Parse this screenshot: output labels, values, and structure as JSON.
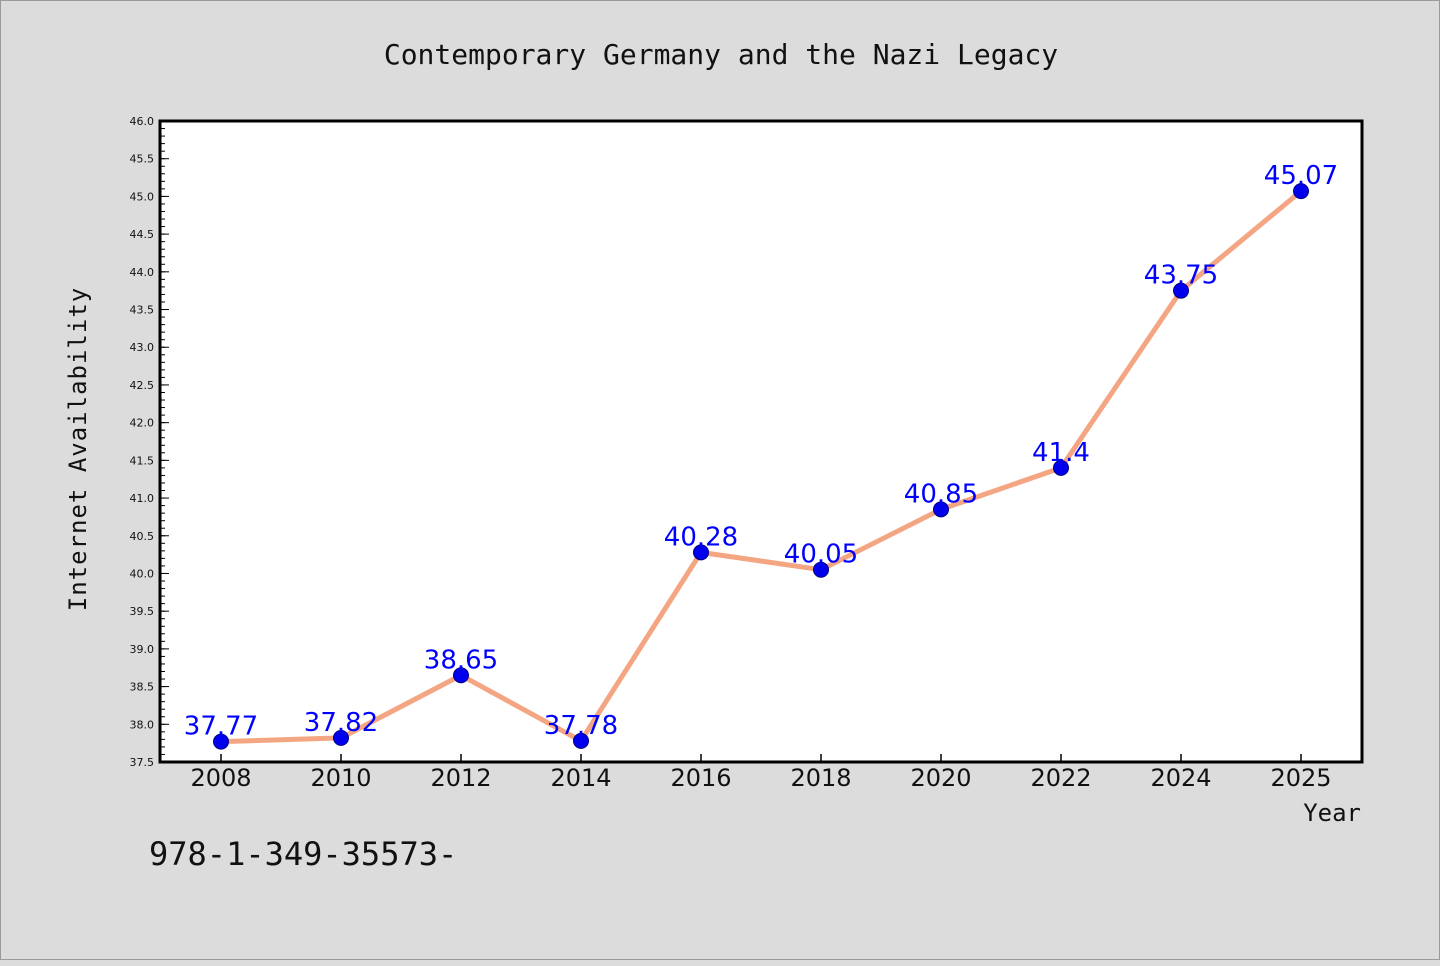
{
  "chart_data": {
    "type": "line",
    "title": "Contemporary Germany and the Nazi Legacy",
    "xlabel": "Year",
    "ylabel": "Internet Availability",
    "categories": [
      "2008",
      "2010",
      "2012",
      "2014",
      "2016",
      "2018",
      "2020",
      "2022",
      "2024",
      "2025"
    ],
    "values": [
      37.77,
      37.82,
      38.65,
      37.78,
      40.28,
      40.05,
      40.85,
      41.4,
      43.75,
      45.07
    ],
    "data_labels": [
      "37.77",
      "37.82",
      "38.65",
      "37.78",
      "40.28",
      "40.05",
      "40.85",
      "41.4",
      "43.75",
      "45.07"
    ],
    "ylim": [
      37.5,
      46.0
    ],
    "y_ticks": [
      "37.5",
      "38.0",
      "38.5",
      "39.0",
      "39.5",
      "40.0",
      "40.5",
      "41.0",
      "41.5",
      "42.0",
      "42.5",
      "43.0",
      "43.5",
      "44.0",
      "44.5",
      "45.0",
      "45.5",
      "46.0"
    ],
    "grid": false,
    "legend": "none",
    "colors": {
      "line": "#f4a582",
      "marker": "#0000ee",
      "label": "#0000ff",
      "plot_background": "#ffffff",
      "figure_background": "#dcdcdc"
    }
  },
  "footnote": "978-1-349-35573-"
}
